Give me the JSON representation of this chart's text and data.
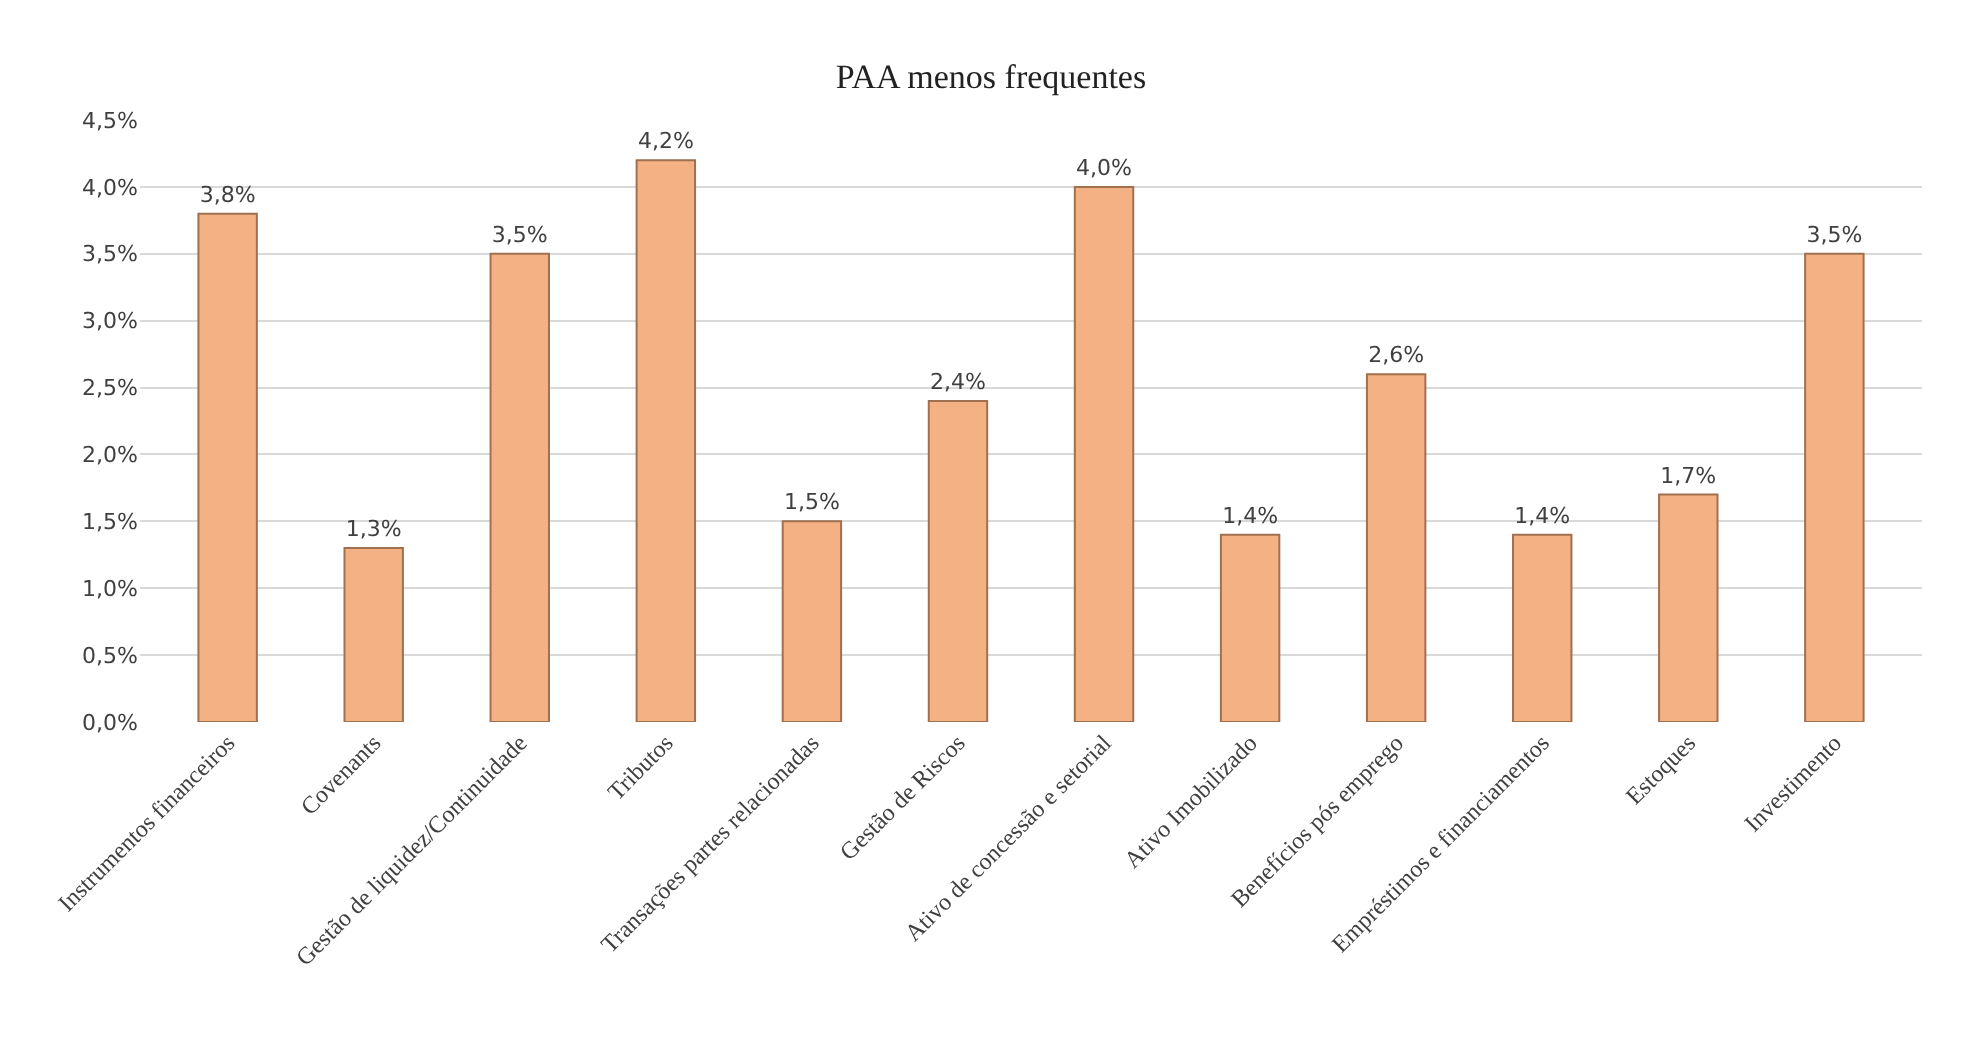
{
  "chart_data": {
    "type": "bar",
    "title": "PAA menos frequentes",
    "categories": [
      "Instrumentos financeiros",
      "Covenants",
      "Gestão de liquidez/Continuidade",
      "Tributos",
      "Transações partes relacionadas",
      "Gestão de Riscos",
      "Ativo de concessão e setorial",
      "Ativo Imobilizado",
      "Benefícios pós emprego",
      "Empréstimos e financiamentos",
      "Estoques",
      "Investimento"
    ],
    "values": [
      3.8,
      1.3,
      3.5,
      4.2,
      1.5,
      2.4,
      4.0,
      1.4,
      2.6,
      1.4,
      1.7,
      3.5
    ],
    "value_labels": [
      "3,8%",
      "1,3%",
      "3,5%",
      "4,2%",
      "1,5%",
      "2,4%",
      "4,0%",
      "1,4%",
      "2,6%",
      "1,4%",
      "1,7%",
      "3,5%"
    ],
    "color": "#f4b183",
    "ylim": [
      0,
      4.5
    ],
    "yticks": [
      {
        "value": 0,
        "label": "0,0%"
      },
      {
        "value": 0.5,
        "label": "0,5%"
      },
      {
        "value": 1,
        "label": "1,0%"
      },
      {
        "value": 1.5,
        "label": "1,5%"
      },
      {
        "value": 2,
        "label": "2,0%"
      },
      {
        "value": 2.5,
        "label": "2,5%"
      },
      {
        "value": 3,
        "label": "3,0%"
      },
      {
        "value": 3.5,
        "label": "3,5%"
      },
      {
        "value": 4,
        "label": "4,0%"
      },
      {
        "value": 4.5,
        "label": "4,5%"
      }
    ],
    "grid": "y",
    "legend": false
  }
}
